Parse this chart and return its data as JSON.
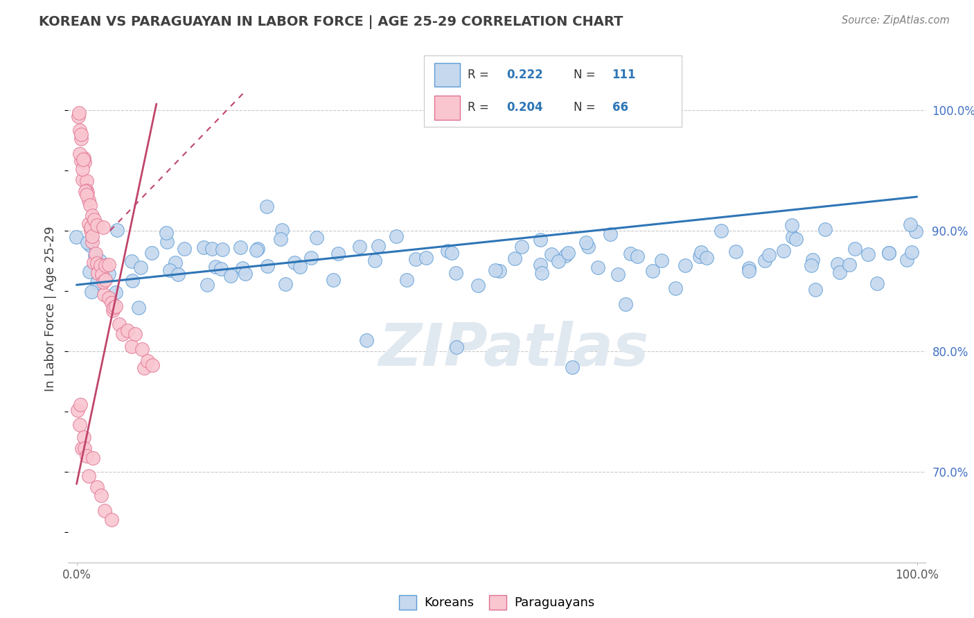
{
  "title": "KOREAN VS PARAGUAYAN IN LABOR FORCE | AGE 25-29 CORRELATION CHART",
  "source": "Source: ZipAtlas.com",
  "ylabel": "In Labor Force | Age 25-29",
  "legend_blue_r": "0.222",
  "legend_blue_n": "111",
  "legend_pink_r": "0.204",
  "legend_pink_n": "66",
  "blue_color": "#c5d8ee",
  "blue_edge_color": "#5b9bd5",
  "blue_line_color": "#2e75b6",
  "pink_color": "#f9c6d0",
  "pink_edge_color": "#e07090",
  "pink_line_color": "#c0456a",
  "grid_color": "#c8c8c8",
  "axis_label_color": "#4472c4",
  "title_color": "#404040",
  "source_color": "#808080",
  "watermark_color": "#e0e8f0",
  "ylim_low": 0.625,
  "ylim_high": 1.045,
  "xlim_low": -0.01,
  "xlim_high": 1.01,
  "yticks": [
    0.7,
    0.8,
    0.9,
    1.0
  ],
  "ytick_labels": [
    "70.0%",
    "80.0%",
    "90.0%",
    "100.0%"
  ],
  "blue_x": [
    0.005,
    0.01,
    0.015,
    0.02,
    0.025,
    0.03,
    0.04,
    0.05,
    0.06,
    0.07,
    0.08,
    0.09,
    0.1,
    0.11,
    0.12,
    0.13,
    0.14,
    0.15,
    0.16,
    0.17,
    0.18,
    0.19,
    0.2,
    0.21,
    0.22,
    0.23,
    0.24,
    0.25,
    0.26,
    0.27,
    0.28,
    0.3,
    0.32,
    0.34,
    0.35,
    0.36,
    0.38,
    0.4,
    0.42,
    0.44,
    0.45,
    0.46,
    0.48,
    0.5,
    0.52,
    0.53,
    0.54,
    0.55,
    0.56,
    0.57,
    0.58,
    0.59,
    0.6,
    0.61,
    0.62,
    0.63,
    0.64,
    0.65,
    0.66,
    0.68,
    0.7,
    0.72,
    0.74,
    0.75,
    0.76,
    0.78,
    0.8,
    0.82,
    0.83,
    0.84,
    0.85,
    0.86,
    0.87,
    0.88,
    0.89,
    0.9,
    0.91,
    0.92,
    0.93,
    0.95,
    0.96,
    0.97,
    0.98,
    0.99,
    1.0,
    0.03,
    0.05,
    0.08,
    0.1,
    0.12,
    0.15,
    0.18,
    0.2,
    0.22,
    0.25,
    0.3,
    0.35,
    0.4,
    0.45,
    0.5,
    0.55,
    0.6,
    0.65,
    0.7,
    0.75,
    0.8,
    0.85,
    0.9,
    0.95,
    1.0,
    0.02
  ],
  "blue_y": [
    0.88,
    0.875,
    0.882,
    0.878,
    0.876,
    0.881,
    0.879,
    0.877,
    0.883,
    0.878,
    0.876,
    0.88,
    0.882,
    0.879,
    0.877,
    0.875,
    0.88,
    0.879,
    0.877,
    0.88,
    0.876,
    0.878,
    0.882,
    0.876,
    0.88,
    0.877,
    0.879,
    0.875,
    0.878,
    0.88,
    0.876,
    0.879,
    0.877,
    0.88,
    0.878,
    0.882,
    0.877,
    0.879,
    0.876,
    0.88,
    0.878,
    0.882,
    0.877,
    0.879,
    0.875,
    0.88,
    0.878,
    0.876,
    0.882,
    0.879,
    0.877,
    0.88,
    0.878,
    0.882,
    0.88,
    0.879,
    0.877,
    0.88,
    0.882,
    0.879,
    0.876,
    0.88,
    0.878,
    0.877,
    0.882,
    0.879,
    0.876,
    0.88,
    0.878,
    0.882,
    0.877,
    0.876,
    0.88,
    0.878,
    0.882,
    0.879,
    0.877,
    0.876,
    0.88,
    0.878,
    0.882,
    0.879,
    0.877,
    0.88,
    0.938,
    0.86,
    0.85,
    0.84,
    0.87,
    0.855,
    0.862,
    0.858,
    0.856,
    0.92,
    0.858,
    0.86,
    0.82,
    0.86,
    0.8,
    0.86,
    0.858,
    0.79,
    0.856,
    0.86,
    0.858,
    0.856,
    0.9,
    0.91,
    0.856,
    0.92,
    0.856
  ],
  "pink_x": [
    0.002,
    0.003,
    0.004,
    0.005,
    0.006,
    0.007,
    0.008,
    0.009,
    0.01,
    0.011,
    0.012,
    0.013,
    0.014,
    0.015,
    0.016,
    0.017,
    0.018,
    0.019,
    0.02,
    0.022,
    0.024,
    0.026,
    0.028,
    0.03,
    0.032,
    0.034,
    0.036,
    0.038,
    0.04,
    0.042,
    0.045,
    0.048,
    0.05,
    0.055,
    0.06,
    0.065,
    0.07,
    0.075,
    0.08,
    0.085,
    0.09,
    0.004,
    0.006,
    0.008,
    0.01,
    0.012,
    0.015,
    0.018,
    0.022,
    0.026,
    0.03,
    0.035,
    0.04,
    0.002,
    0.003,
    0.005,
    0.007,
    0.009,
    0.011,
    0.013,
    0.016,
    0.02,
    0.025,
    0.03,
    0.035,
    0.04
  ],
  "pink_y": [
    1.005,
    0.995,
    0.985,
    0.978,
    0.972,
    0.965,
    0.958,
    0.951,
    0.945,
    0.938,
    0.932,
    0.925,
    0.919,
    0.912,
    0.905,
    0.898,
    0.892,
    0.885,
    0.879,
    0.875,
    0.87,
    0.866,
    0.862,
    0.858,
    0.855,
    0.852,
    0.848,
    0.845,
    0.842,
    0.839,
    0.836,
    0.832,
    0.829,
    0.825,
    0.82,
    0.815,
    0.81,
    0.805,
    0.8,
    0.795,
    0.79,
    0.96,
    0.952,
    0.944,
    0.937,
    0.93,
    0.922,
    0.915,
    0.908,
    0.9,
    0.892,
    0.884,
    0.876,
    0.755,
    0.748,
    0.742,
    0.735,
    0.728,
    0.72,
    0.712,
    0.705,
    0.698,
    0.69,
    0.682,
    0.675,
    0.668
  ],
  "blue_trend_x": [
    0.0,
    1.0
  ],
  "blue_trend_y": [
    0.855,
    0.928
  ],
  "pink_trend_x": [
    0.0,
    0.095
  ],
  "pink_trend_y": [
    0.69,
    1.005
  ]
}
